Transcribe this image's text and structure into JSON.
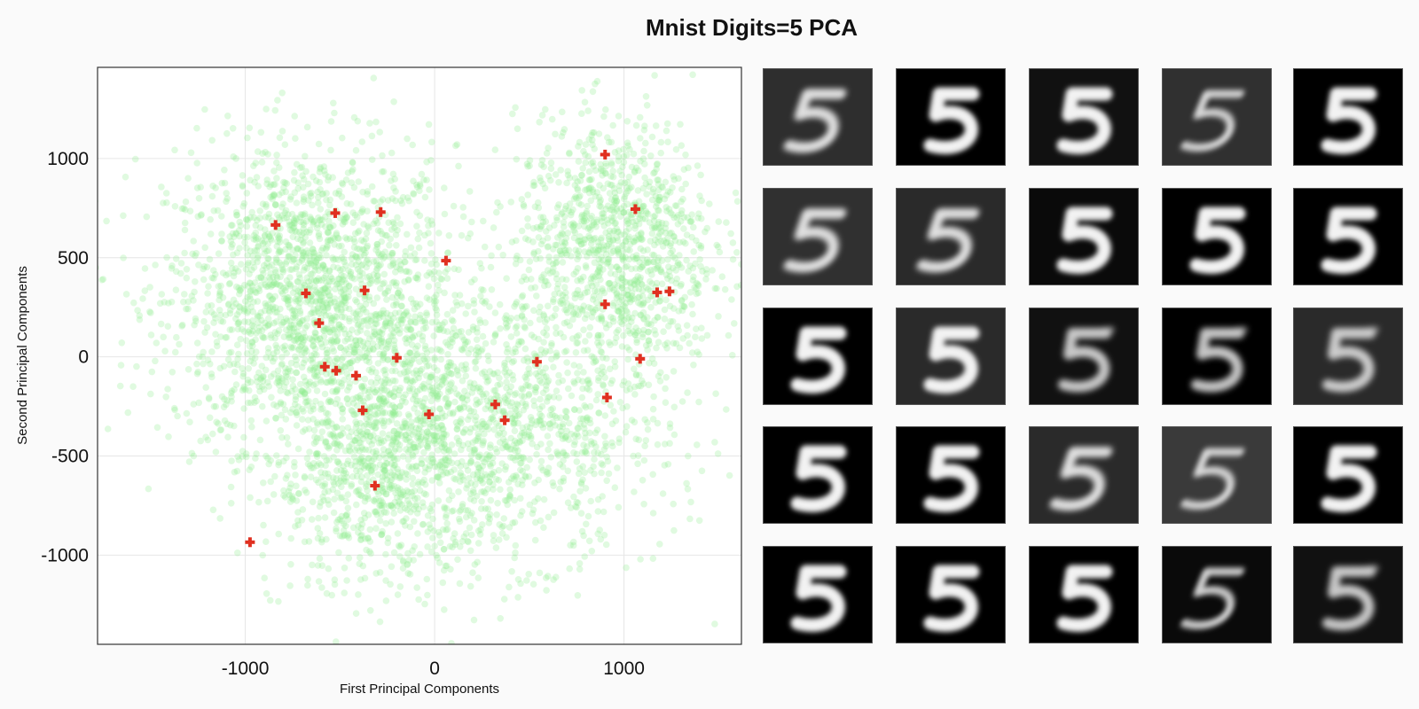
{
  "title": "Mnist Digits=5 PCA",
  "chart_data": {
    "type": "scatter",
    "title": "Mnist Digits=5 PCA",
    "xlabel": "First Principal  Components",
    "ylabel": "Second Principal  Components",
    "xlim": [
      -1780,
      1620
    ],
    "ylim": [
      -1450,
      1460
    ],
    "xticks": [
      -1000,
      0,
      1000
    ],
    "xtick_labels": [
      "-1000",
      "0",
      "1000"
    ],
    "yticks": [
      -1000,
      -500,
      0,
      500,
      1000
    ],
    "ytick_labels": [
      "-1000",
      "-500",
      "0",
      "500",
      "1000"
    ],
    "grid": true,
    "background_points": {
      "description_series": "all digit-5 samples projected on the first two principal components",
      "color": "#90ee90",
      "approx_count": 5000,
      "clusters": [
        {
          "center": [
            -650,
            300
          ],
          "spread": [
            380,
            380
          ],
          "weight": 0.38
        },
        {
          "center": [
            950,
            550
          ],
          "spread": [
            260,
            320
          ],
          "weight": 0.22
        },
        {
          "center": [
            250,
            -350
          ],
          "spread": [
            480,
            330
          ],
          "weight": 0.28
        },
        {
          "center": [
            -300,
            -600
          ],
          "spread": [
            280,
            300
          ],
          "weight": 0.12
        }
      ]
    },
    "highlighted_points": {
      "color": "#e03020",
      "marker": "cross",
      "points": [
        [
          900,
          1020
        ],
        [
          1060,
          745
        ],
        [
          -840,
          665
        ],
        [
          -525,
          725
        ],
        [
          -285,
          730
        ],
        [
          60,
          485
        ],
        [
          -680,
          320
        ],
        [
          -370,
          335
        ],
        [
          900,
          265
        ],
        [
          1175,
          325
        ],
        [
          1240,
          330
        ],
        [
          -610,
          170
        ],
        [
          -580,
          -50
        ],
        [
          -520,
          -70
        ],
        [
          -415,
          -95
        ],
        [
          -200,
          -5
        ],
        [
          540,
          -25
        ],
        [
          1085,
          -10
        ],
        [
          910,
          -205
        ],
        [
          320,
          -240
        ],
        [
          370,
          -320
        ],
        [
          -380,
          -270
        ],
        [
          -30,
          -290
        ],
        [
          -315,
          -650
        ],
        [
          -975,
          -935
        ]
      ]
    }
  },
  "thumbnails": {
    "count": 25,
    "rows": 5,
    "cols": 5,
    "items": [
      {
        "bg": "#2e2e2e",
        "variant": "slant"
      },
      {
        "bg": "#000000",
        "variant": "bold"
      },
      {
        "bg": "#111111",
        "variant": "bold"
      },
      {
        "bg": "#303030",
        "variant": "thin"
      },
      {
        "bg": "#000000",
        "variant": "bold"
      },
      {
        "bg": "#303030",
        "variant": "slant"
      },
      {
        "bg": "#2a2a2a",
        "variant": "slant"
      },
      {
        "bg": "#0a0a0a",
        "variant": "bold"
      },
      {
        "bg": "#000000",
        "variant": "bold"
      },
      {
        "bg": "#000000",
        "variant": "bold"
      },
      {
        "bg": "#000000",
        "variant": "bold"
      },
      {
        "bg": "#2a2a2a",
        "variant": "bold"
      },
      {
        "bg": "#111111",
        "variant": "double"
      },
      {
        "bg": "#000000",
        "variant": "double"
      },
      {
        "bg": "#2a2a2a",
        "variant": "double"
      },
      {
        "bg": "#000000",
        "variant": "bold"
      },
      {
        "bg": "#000000",
        "variant": "bold"
      },
      {
        "bg": "#2a2a2a",
        "variant": "slant"
      },
      {
        "bg": "#3a3a3a",
        "variant": "thin"
      },
      {
        "bg": "#000000",
        "variant": "bold"
      },
      {
        "bg": "#000000",
        "variant": "bold"
      },
      {
        "bg": "#000000",
        "variant": "bold"
      },
      {
        "bg": "#000000",
        "variant": "bold"
      },
      {
        "bg": "#0a0a0a",
        "variant": "thin"
      },
      {
        "bg": "#111111",
        "variant": "double"
      }
    ]
  }
}
